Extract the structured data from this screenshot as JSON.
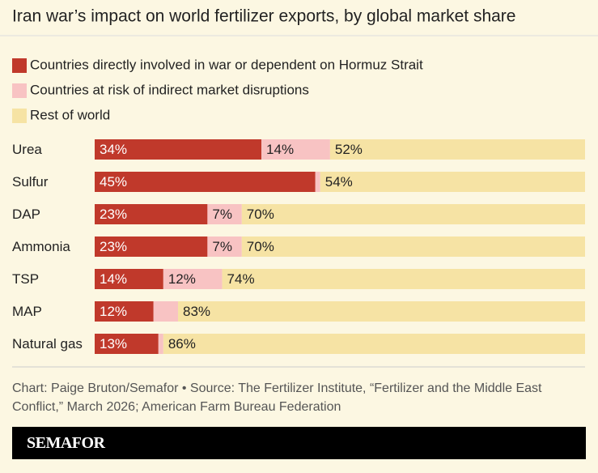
{
  "chart_data": {
    "type": "bar",
    "orientation": "horizontal",
    "stacked": true,
    "title": "Iran war’s impact on world fertilizer exports, by global market share",
    "categories": [
      "Urea",
      "Sulfur",
      "DAP",
      "Ammonia",
      "TSP",
      "MAP",
      "Natural gas"
    ],
    "xlim": [
      0,
      100
    ],
    "series": [
      {
        "name": "Countries directly involved in war or dependent on Hormuz Strait",
        "color": "#c0392b",
        "values": [
          34,
          45,
          23,
          23,
          14,
          12,
          13
        ],
        "value_labels": [
          "34%",
          "45%",
          "23%",
          "23%",
          "14%",
          "12%",
          "13%"
        ]
      },
      {
        "name": "Countries at risk of indirect market disruptions",
        "color": "#f8c3c3",
        "values": [
          14,
          1,
          7,
          7,
          12,
          5,
          1
        ],
        "value_labels": [
          "14%",
          null,
          "7%",
          "7%",
          "12%",
          null,
          null
        ]
      },
      {
        "name": "Rest of world",
        "color": "#f6e3a4",
        "values": [
          52,
          54,
          70,
          70,
          74,
          83,
          86
        ],
        "value_labels": [
          "52%",
          "54%",
          "70%",
          "70%",
          "74%",
          "83%",
          "86%"
        ]
      }
    ],
    "source": "Chart: Paige Bruton/Semafor • Source: The Fertilizer Institute, “Fertilizer and the Middle East Conflict,” March 2026; American Farm Bureau Federation",
    "brand": "SEMAFOR"
  }
}
